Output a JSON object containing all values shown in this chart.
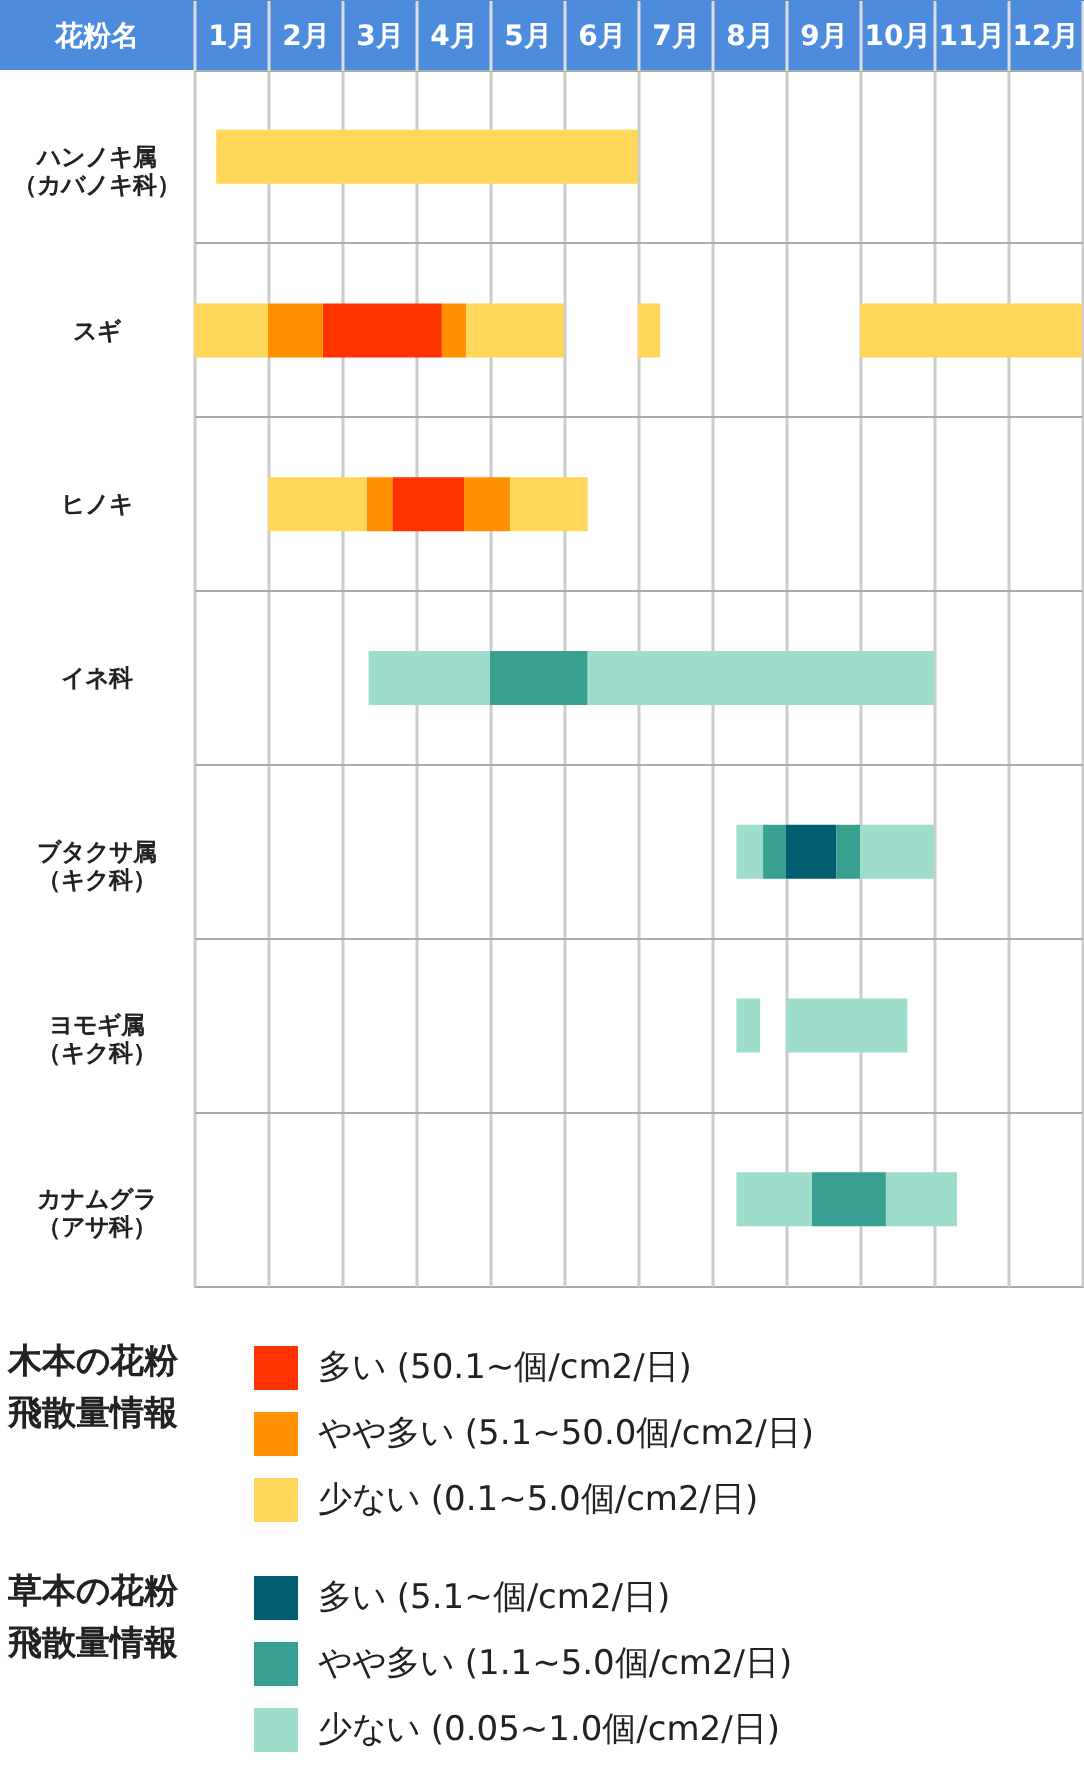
{
  "chart_data": {
    "type": "bar",
    "orientation": "horizontal",
    "ylabel": "花粉名",
    "legend_title": [
      "木本の花粉飛散量情報",
      "草本の花粉飛散量情報"
    ],
    "categories": [
      "ハンノキ属（カバノキ科）",
      "スギ",
      "ヒノキ",
      "イネ科",
      "ブタクサ属（キク科）",
      "ヨモギ属（キク科）",
      "カナムグラ（アサ科）"
    ],
    "xlim": [
      0,
      12
    ],
    "xticks": [
      {
        "value": 0,
        "label": null
      },
      {
        "value": 0.5,
        "label": "1月"
      },
      {
        "value": 1,
        "label": null
      },
      {
        "value": 1.5,
        "label": "2月"
      },
      {
        "value": 2,
        "label": null
      },
      {
        "value": 2.5,
        "label": "3月"
      },
      {
        "value": 3,
        "label": null
      },
      {
        "value": 3.5,
        "label": "4月"
      },
      {
        "value": 4,
        "label": null
      },
      {
        "value": 4.5,
        "label": "5月"
      },
      {
        "value": 5,
        "label": null
      },
      {
        "value": 5.5,
        "label": "6月"
      },
      {
        "value": 6,
        "label": null
      },
      {
        "value": 6.5,
        "label": "7月"
      },
      {
        "value": 7,
        "label": null
      },
      {
        "value": 7.5,
        "label": "8月"
      },
      {
        "value": 8,
        "label": null
      },
      {
        "value": 8.5,
        "label": "9月"
      },
      {
        "value": 9,
        "label": null
      },
      {
        "value": 9.5,
        "label": "10月"
      },
      {
        "value": 10,
        "label": null
      },
      {
        "value": 10.5,
        "label": "11月"
      },
      {
        "value": 11,
        "label": null
      },
      {
        "value": 11.5,
        "label": "12月"
      },
      {
        "value": 12,
        "label": null
      }
    ],
    "grid": true,
    "legend": "bottom",
    "series": [
      {
        "name": "多い (50.1~個/cm2/日)",
        "color": "#ff3300",
        "base": [
          null,
          1.74,
          2.68,
          null,
          null,
          null,
          null
        ],
        "values": [
          null,
          1.61,
          0.97,
          null,
          null,
          null,
          null
        ]
      },
      {
        "name": "やや多い (5.1~50.0個/cm2/日)",
        "color": "#ff9000",
        "base": [
          null,
          1.0,
          2.33,
          null,
          null,
          null,
          null
        ],
        "values": [
          null,
          0.74,
          0.35,
          null,
          null,
          null,
          null
        ]
      },
      {
        "name": "少ない (0.1~5.0個/cm2/日)",
        "color": "#ffd75a",
        "base": [
          0.3,
          0,
          1.0,
          null,
          null,
          null,
          null
        ],
        "values": [
          5.7,
          1.0,
          1.33,
          null,
          null,
          null,
          null
        ]
      },
      {
        "name": "多い (5.1~個/cm2/日)",
        "color": "#015e70",
        "base": [
          null,
          null,
          null,
          null,
          8.0,
          null,
          null
        ],
        "values": [
          null,
          null,
          null,
          null,
          0.68,
          null,
          null
        ]
      },
      {
        "name": "やや多い (1.1~5.0個/cm2/日)",
        "color": "#38a090",
        "base": [
          null,
          null,
          null,
          4.0,
          7.69,
          null,
          8.35
        ],
        "values": [
          null,
          null,
          null,
          1.32,
          0.31,
          null,
          1.0
        ]
      },
      {
        "name": "少ない (0.05~1.0個/cm2/日)",
        "color": "#9edccb",
        "base": [
          null,
          null,
          null,
          2.36,
          7.33,
          7.33,
          7.33
        ],
        "values": [
          null,
          null,
          null,
          1.64,
          0.36,
          0.32,
          1.02
        ]
      },
      {
        "color": "#ff9000",
        "base": [
          null,
          3.35,
          3.65,
          null,
          null,
          null,
          null
        ],
        "values": [
          null,
          0.33,
          0.62,
          null,
          null,
          null,
          null
        ]
      },
      {
        "color": "#ffd75a",
        "base": [
          null,
          3.68,
          4.27,
          null,
          null,
          null,
          null
        ],
        "values": [
          null,
          1.32,
          1.05,
          null,
          null,
          null,
          null
        ]
      },
      {
        "color": "#ffd75a",
        "base": [
          null,
          6.0,
          null,
          null,
          null,
          null,
          null
        ],
        "values": [
          null,
          0.3,
          null,
          null,
          null,
          null,
          null
        ]
      },
      {
        "color": "#ffd75a",
        "base": [
          null,
          9.0,
          null,
          null,
          null,
          null,
          null
        ],
        "values": [
          null,
          3.0,
          null,
          null,
          null,
          null,
          null
        ]
      },
      {
        "color": "#38a090",
        "base": [
          null,
          null,
          null,
          null,
          8.68,
          null,
          null
        ],
        "values": [
          null,
          null,
          null,
          null,
          0.32,
          null,
          null
        ]
      },
      {
        "color": "#9edccb",
        "base": [
          null,
          null,
          null,
          5.32,
          9.0,
          8.0,
          9.35
        ],
        "values": [
          null,
          null,
          null,
          4.68,
          1.0,
          1.64,
          0.96
        ]
      }
    ]
  }
}
